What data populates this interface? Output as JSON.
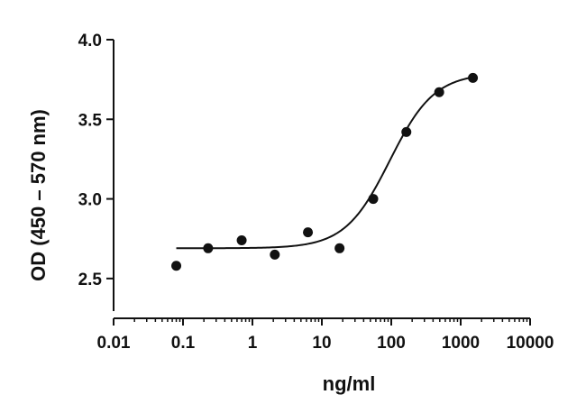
{
  "chart_data": {
    "type": "scatter",
    "xscale": "log",
    "xlabel": "ng/ml",
    "ylabel": "OD (450 – 570 nm)",
    "xlim": [
      0.01,
      10000
    ],
    "ylim": [
      2.25,
      4.0
    ],
    "x_ticks": [
      0.01,
      0.1,
      1,
      10,
      100,
      1000,
      10000
    ],
    "x_tick_labels": [
      "0.01",
      "0.1",
      "1",
      "10",
      "100",
      "1000",
      "10000"
    ],
    "y_ticks": [
      2.5,
      3.0,
      3.5,
      4.0
    ],
    "y_tick_labels": [
      "2.5",
      "3.0",
      "3.5",
      "4.0"
    ],
    "grid": false,
    "series": [
      {
        "x": [
          0.08,
          0.23,
          0.7,
          2.1,
          6.3,
          18,
          55,
          165,
          490,
          1500
        ],
        "y": [
          2.58,
          2.69,
          2.74,
          2.65,
          2.79,
          2.69,
          3.0,
          3.42,
          3.67,
          3.76
        ]
      }
    ],
    "fit_curve": {
      "model": "4PL",
      "bottom": 2.69,
      "top": 3.79,
      "ec50": 95,
      "hill": 1.35,
      "x_range": [
        0.08,
        1500
      ]
    }
  }
}
